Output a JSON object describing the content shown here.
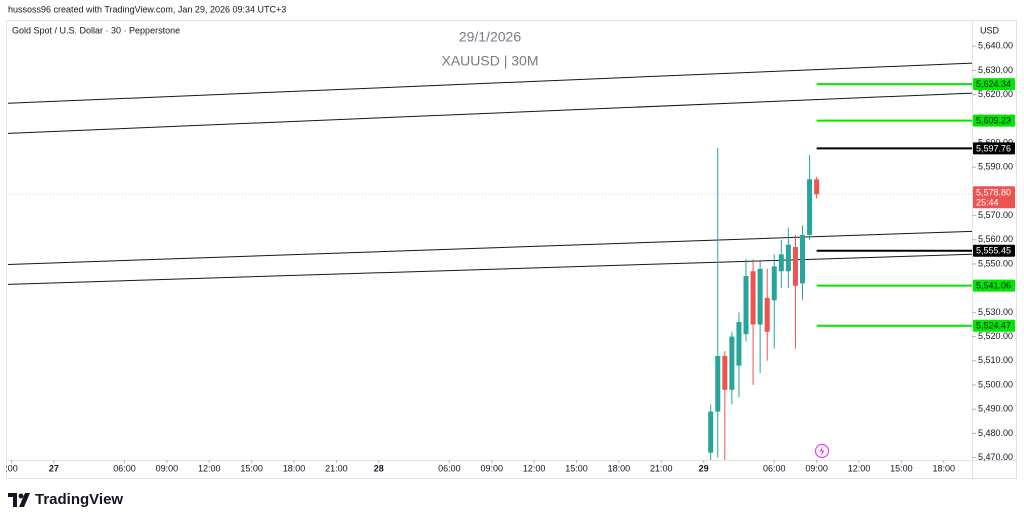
{
  "chart_data": {
    "type": "candlestick",
    "attribution": "hussoss96 created with TradingView.com, Jan 29, 2026 09:34 UTC+3",
    "title": "Gold Spot / U.S. Dollar · 30 · Pepperstone",
    "watermark": [
      "29/1/2026",
      "XAUUSD | 30M"
    ],
    "currency": "USD",
    "brand": "TradingView",
    "up_color": "#26a69a",
    "down_color": "#ef5350",
    "grid": false,
    "x": [
      "2026-01-29T01:30",
      "2026-01-29T02:00",
      "2026-01-29T02:30",
      "2026-01-29T03:00",
      "2026-01-29T03:30",
      "2026-01-29T04:00",
      "2026-01-29T04:30",
      "2026-01-29T05:00",
      "2026-01-29T05:30",
      "2026-01-29T06:00",
      "2026-01-29T06:30",
      "2026-01-29T07:00",
      "2026-01-29T07:30",
      "2026-01-29T08:00",
      "2026-01-29T08:30",
      "2026-01-29T09:00"
    ],
    "open": [
      5472,
      5489,
      5512,
      5498,
      5508,
      5521,
      5547,
      5525,
      5536,
      5535,
      5547,
      5547,
      5557,
      5542,
      5562,
      5585
    ],
    "high": [
      5492,
      5598,
      5514,
      5522,
      5530,
      5552,
      5552,
      5551,
      5548,
      5554,
      5560,
      5565,
      5562,
      5566,
      5595,
      5586
    ],
    "low": [
      5462,
      5470,
      5469,
      5492,
      5495,
      5518,
      5500,
      5505,
      5510,
      5515,
      5540,
      5540,
      5515,
      5535,
      5560,
      5577
    ],
    "close": [
      5489,
      5512,
      5498,
      5520,
      5526,
      5545,
      5525,
      5548,
      5522,
      5549,
      5554,
      5558,
      5541,
      5562,
      5585,
      5578.8
    ],
    "xlim": [
      "2026-01-26T20:45",
      "2026-01-29T20:00"
    ],
    "xticks": [
      {
        "value": "2026-01-26T21:00",
        "label": ":00"
      },
      {
        "value": "2026-01-27T00:00",
        "label": "27"
      },
      {
        "value": "2026-01-27T06:00",
        "label": "06:00"
      },
      {
        "value": "2026-01-27T09:00",
        "label": "09:00"
      },
      {
        "value": "2026-01-27T12:00",
        "label": "12:00"
      },
      {
        "value": "2026-01-27T15:00",
        "label": "15:00"
      },
      {
        "value": "2026-01-27T18:00",
        "label": "18:00"
      },
      {
        "value": "2026-01-27T21:00",
        "label": "21:00"
      },
      {
        "value": "2026-01-28T00:00",
        "label": "28"
      },
      {
        "value": "2026-01-28T06:00",
        "label": "06:00"
      },
      {
        "value": "2026-01-28T09:00",
        "label": "09:00"
      },
      {
        "value": "2026-01-28T12:00",
        "label": "12:00"
      },
      {
        "value": "2026-01-28T15:00",
        "label": "15:00"
      },
      {
        "value": "2026-01-28T18:00",
        "label": "18:00"
      },
      {
        "value": "2026-01-28T21:00",
        "label": "21:00"
      },
      {
        "value": "2026-01-29T00:00",
        "label": "29"
      },
      {
        "value": "2026-01-29T06:00",
        "label": "06:00"
      },
      {
        "value": "2026-01-29T09:00",
        "label": "09:00"
      },
      {
        "value": "2026-01-29T12:00",
        "label": "12:00"
      },
      {
        "value": "2026-01-29T15:00",
        "label": "15:00"
      },
      {
        "value": "2026-01-29T18:00",
        "label": "18:00"
      }
    ],
    "ylim": [
      5469,
      5650
    ],
    "yticks": [
      {
        "value": 5470,
        "label": "5,470.00"
      },
      {
        "value": 5480,
        "label": "5,480.00"
      },
      {
        "value": 5490,
        "label": "5,490.00"
      },
      {
        "value": 5500,
        "label": "5,500.00"
      },
      {
        "value": 5510,
        "label": "5,510.00"
      },
      {
        "value": 5520,
        "label": "5,520.00"
      },
      {
        "value": 5530,
        "label": "5,530.00"
      },
      {
        "value": 5540,
        "label": "5,540.00"
      },
      {
        "value": 5550,
        "label": "5,550.00"
      },
      {
        "value": 5560,
        "label": "5,560.00"
      },
      {
        "value": 5570,
        "label": "5,570.00"
      },
      {
        "value": 5580,
        "label": "5,580.00"
      },
      {
        "value": 5590,
        "label": "5,590.00"
      },
      {
        "value": 5600,
        "label": "5,600.00"
      },
      {
        "value": 5610,
        "label": "5,610.00"
      },
      {
        "value": 5620,
        "label": "5,620.00"
      },
      {
        "value": 5630,
        "label": "5,630.00"
      },
      {
        "value": 5640,
        "label": "5,640.00"
      }
    ],
    "trendlines": [
      {
        "x": [
          "2026-01-26T20:45",
          "2026-01-29T20:00"
        ],
        "y": [
          5616.4,
          5633.0
        ]
      },
      {
        "x": [
          "2026-01-26T20:45",
          "2026-01-29T20:00"
        ],
        "y": [
          5604.0,
          5620.6
        ]
      },
      {
        "x": [
          "2026-01-26T20:45",
          "2026-01-29T20:00"
        ],
        "y": [
          5549.8,
          5563.5
        ]
      },
      {
        "x": [
          "2026-01-26T20:45",
          "2026-01-29T20:00"
        ],
        "y": [
          5541.6,
          5554.0
        ]
      }
    ],
    "levels": [
      {
        "value": 5624.34,
        "label": "5,624.34",
        "color": "#00e600",
        "start": "2026-01-29T09:00"
      },
      {
        "value": 5609.23,
        "label": "5,609.23",
        "color": "#00e600",
        "start": "2026-01-29T09:00"
      },
      {
        "value": 5597.76,
        "label": "5,597.76",
        "color": "#000000",
        "start": "2026-01-29T09:00"
      },
      {
        "value": 5555.45,
        "label": "5,555.45",
        "color": "#000000",
        "start": "2026-01-29T09:00"
      },
      {
        "value": 5541.06,
        "label": "5,541.06",
        "color": "#00e600",
        "start": "2026-01-29T09:00"
      },
      {
        "value": 5524.47,
        "label": "5,524.47",
        "color": "#00e600",
        "start": "2026-01-29T09:00"
      }
    ],
    "last_price": 5578.8,
    "last_price_label": "5,578.80",
    "countdown": "25:44"
  }
}
